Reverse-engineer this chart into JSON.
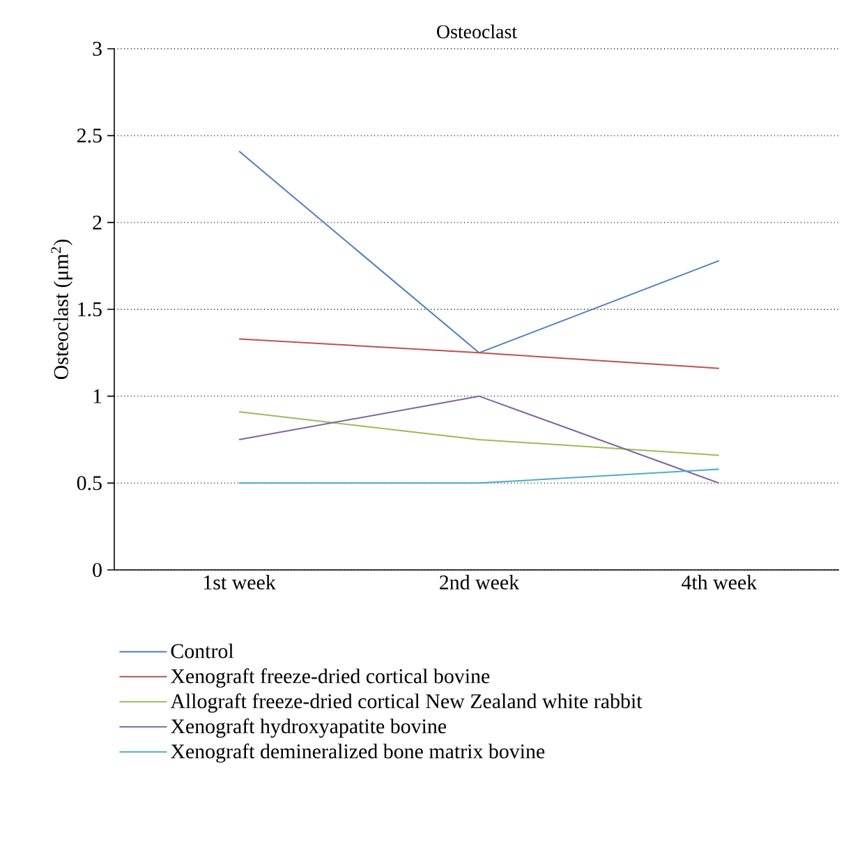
{
  "chart_data": {
    "type": "line",
    "title": "Osteoclast",
    "ylabel": "Osteoclast (μm$^{2}$)",
    "categories": [
      "1st week",
      "2nd week",
      "4th week"
    ],
    "series": [
      {
        "name": "Control",
        "color": "#4f7dbf",
        "values": [
          2.41,
          1.25,
          1.78
        ]
      },
      {
        "name": "Xenograft freeze-dried cortical bovine",
        "color": "#c0504d",
        "values": [
          1.33,
          1.25,
          1.16
        ]
      },
      {
        "name": "Allograft freeze-dried cortical New Zealand white rabbit",
        "color": "#9bbb59",
        "values": [
          0.91,
          0.75,
          0.66
        ]
      },
      {
        "name": "Xenograft hydroxyapatite bovine",
        "color": "#8064a2",
        "values": [
          0.75,
          1.0,
          0.5
        ]
      },
      {
        "name": "Xenograft demineralized bone matrix bovine",
        "color": "#4bacc6",
        "values": [
          0.5,
          0.5,
          0.58
        ]
      }
    ],
    "ylim": [
      0,
      3
    ],
    "yticks": [
      0,
      0.5,
      1,
      1.5,
      2,
      2.5,
      3
    ],
    "grid": "y",
    "legend": "bottom"
  }
}
